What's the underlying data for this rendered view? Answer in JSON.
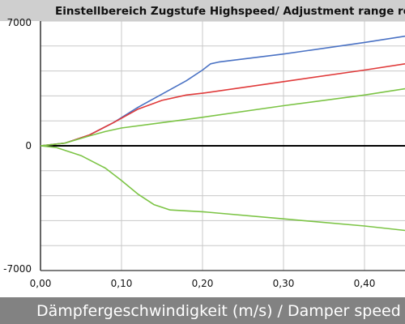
{
  "chart_data": {
    "type": "line",
    "title": "Einstellbereich Zugstufe Highspeed/ Adjustment range rebound highs",
    "xlabel": "Dämpfergeschwindigkeit (m/s) / Damper speed (m/s)",
    "ylabel": "",
    "xlim": [
      0,
      0.45
    ],
    "ylim": [
      -7000,
      7000
    ],
    "x_ticks": [
      "0,00",
      "0,10",
      "0,20",
      "0,30",
      "0,40"
    ],
    "y_ticks": [
      "7000",
      "0",
      "-7000"
    ],
    "grid": true,
    "zero_line": true,
    "legend": "none",
    "series": [
      {
        "color": "#4a72c4",
        "points": [
          [
            0,
            0
          ],
          [
            0.03,
            150
          ],
          [
            0.06,
            600
          ],
          [
            0.09,
            1300
          ],
          [
            0.12,
            2150
          ],
          [
            0.15,
            2900
          ],
          [
            0.18,
            3650
          ],
          [
            0.2,
            4250
          ],
          [
            0.21,
            4600
          ],
          [
            0.22,
            4700
          ],
          [
            0.3,
            5150
          ],
          [
            0.4,
            5800
          ],
          [
            0.45,
            6150
          ]
        ]
      },
      {
        "color": "#e03a3a",
        "points": [
          [
            0,
            0
          ],
          [
            0.03,
            150
          ],
          [
            0.06,
            600
          ],
          [
            0.09,
            1300
          ],
          [
            0.12,
            2050
          ],
          [
            0.15,
            2550
          ],
          [
            0.18,
            2850
          ],
          [
            0.2,
            2950
          ],
          [
            0.3,
            3600
          ],
          [
            0.4,
            4250
          ],
          [
            0.45,
            4600
          ]
        ]
      },
      {
        "color": "#7cc445",
        "points": [
          [
            0,
            0
          ],
          [
            0.03,
            150
          ],
          [
            0.06,
            550
          ],
          [
            0.08,
            800
          ],
          [
            0.1,
            1000
          ],
          [
            0.15,
            1300
          ],
          [
            0.2,
            1600
          ],
          [
            0.3,
            2250
          ],
          [
            0.4,
            2850
          ],
          [
            0.45,
            3200
          ]
        ]
      },
      {
        "color": "#7cc445",
        "points": [
          [
            0,
            0
          ],
          [
            0.02,
            -100
          ],
          [
            0.05,
            -550
          ],
          [
            0.08,
            -1250
          ],
          [
            0.1,
            -1950
          ],
          [
            0.12,
            -2700
          ],
          [
            0.14,
            -3300
          ],
          [
            0.16,
            -3600
          ],
          [
            0.2,
            -3700
          ],
          [
            0.3,
            -4100
          ],
          [
            0.4,
            -4500
          ],
          [
            0.45,
            -4750
          ]
        ]
      }
    ]
  }
}
